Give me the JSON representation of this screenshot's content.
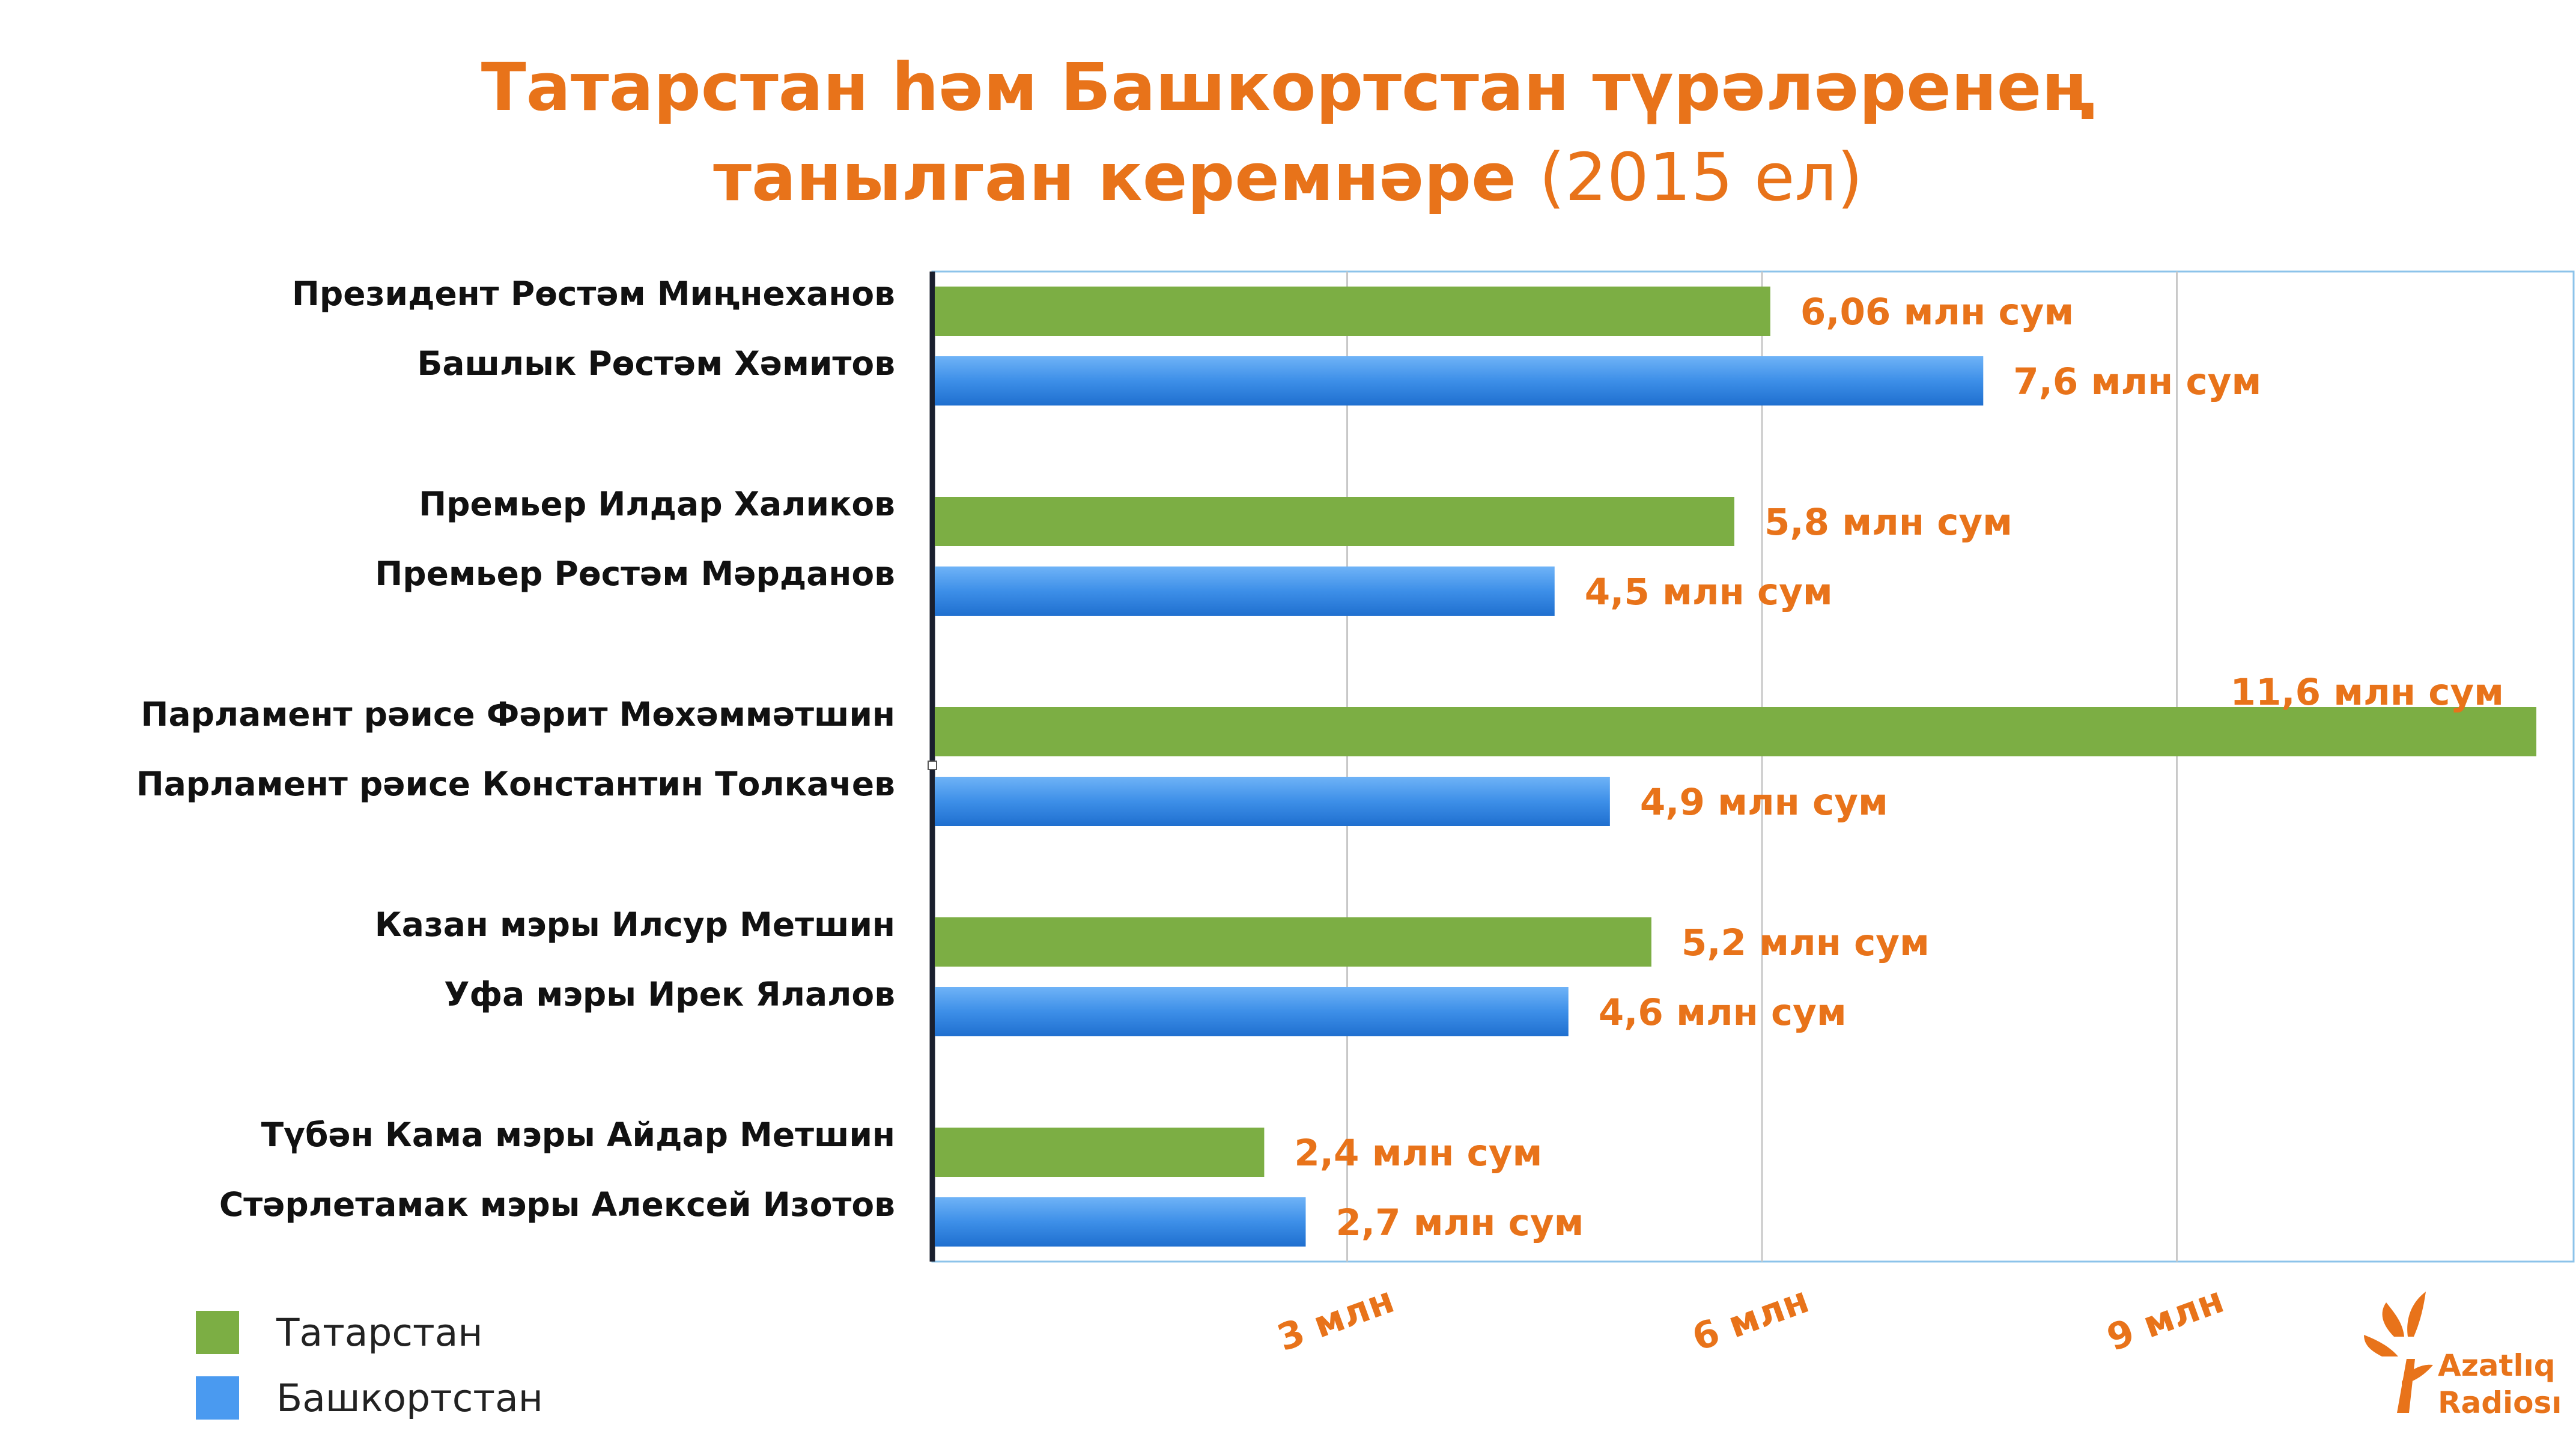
{
  "title": {
    "line1": "Татарстан һәм Башкортстан түрәләренең",
    "line2_bold": "танылган керемнәре",
    "line2_normal": "(2015 ел)"
  },
  "logo": {
    "line1": "Azatlıq",
    "line2": "Radiosı"
  },
  "colors": {
    "tatarstan": "#7cae44",
    "bashkortostan": "#3d8fe8",
    "accent": "#e8731a"
  },
  "chart_data": {
    "type": "bar",
    "orientation": "horizontal",
    "xlim": [
      0,
      11.7
    ],
    "xticks": [
      {
        "value": 3,
        "label": "3 млн"
      },
      {
        "value": 6,
        "label": "6 млн"
      },
      {
        "value": 9,
        "label": "9 млн"
      }
    ],
    "grid": true,
    "legend_position": "bottom-left",
    "legend": [
      {
        "name": "Татарстан",
        "color": "#7cae44"
      },
      {
        "name": "Башкортстан",
        "color": "#3d8fe8"
      }
    ],
    "bars": [
      {
        "label": "Президент Рөстәм Миңнеханов",
        "value": 6.06,
        "value_label": "6,06 млн сум",
        "series": "Татарстан"
      },
      {
        "label": "Башлык Рөстәм Хәмитов",
        "value": 7.6,
        "value_label": "7,6 млн сум",
        "series": "Башкортстан"
      },
      {
        "label": "Премьер Илдар Халиков",
        "value": 5.8,
        "value_label": "5,8 млн сум",
        "series": "Татарстан"
      },
      {
        "label": "Премьер Рөстәм Мәрданов",
        "value": 4.5,
        "value_label": "4,5 млн сум",
        "series": "Башкортстан"
      },
      {
        "label": "Парламент рәисе Фәрит Мөхәммәтшин",
        "value": 11.6,
        "value_label": "11,6 млн сум",
        "series": "Татарстан"
      },
      {
        "label": "Парламент рәисе Константин Толкачев",
        "value": 4.9,
        "value_label": "4,9 млн сум",
        "series": "Башкортстан"
      },
      {
        "label": "Казан мэры Илсур Метшин",
        "value": 5.2,
        "value_label": "5,2 млн сум",
        "series": "Татарстан"
      },
      {
        "label": "Уфа мэры Ирек Ялалов",
        "value": 4.6,
        "value_label": "4,6 млн сум",
        "series": "Башкортстан"
      },
      {
        "label": "Түбән Кама мэры Айдар Метшин",
        "value": 2.4,
        "value_label": "2,4 млн сум",
        "series": "Татарстан"
      },
      {
        "label": "Стәрлетамак мэры Алексей Изотов",
        "value": 2.7,
        "value_label": "2,7 млн сум",
        "series": "Башкортстан"
      }
    ]
  }
}
